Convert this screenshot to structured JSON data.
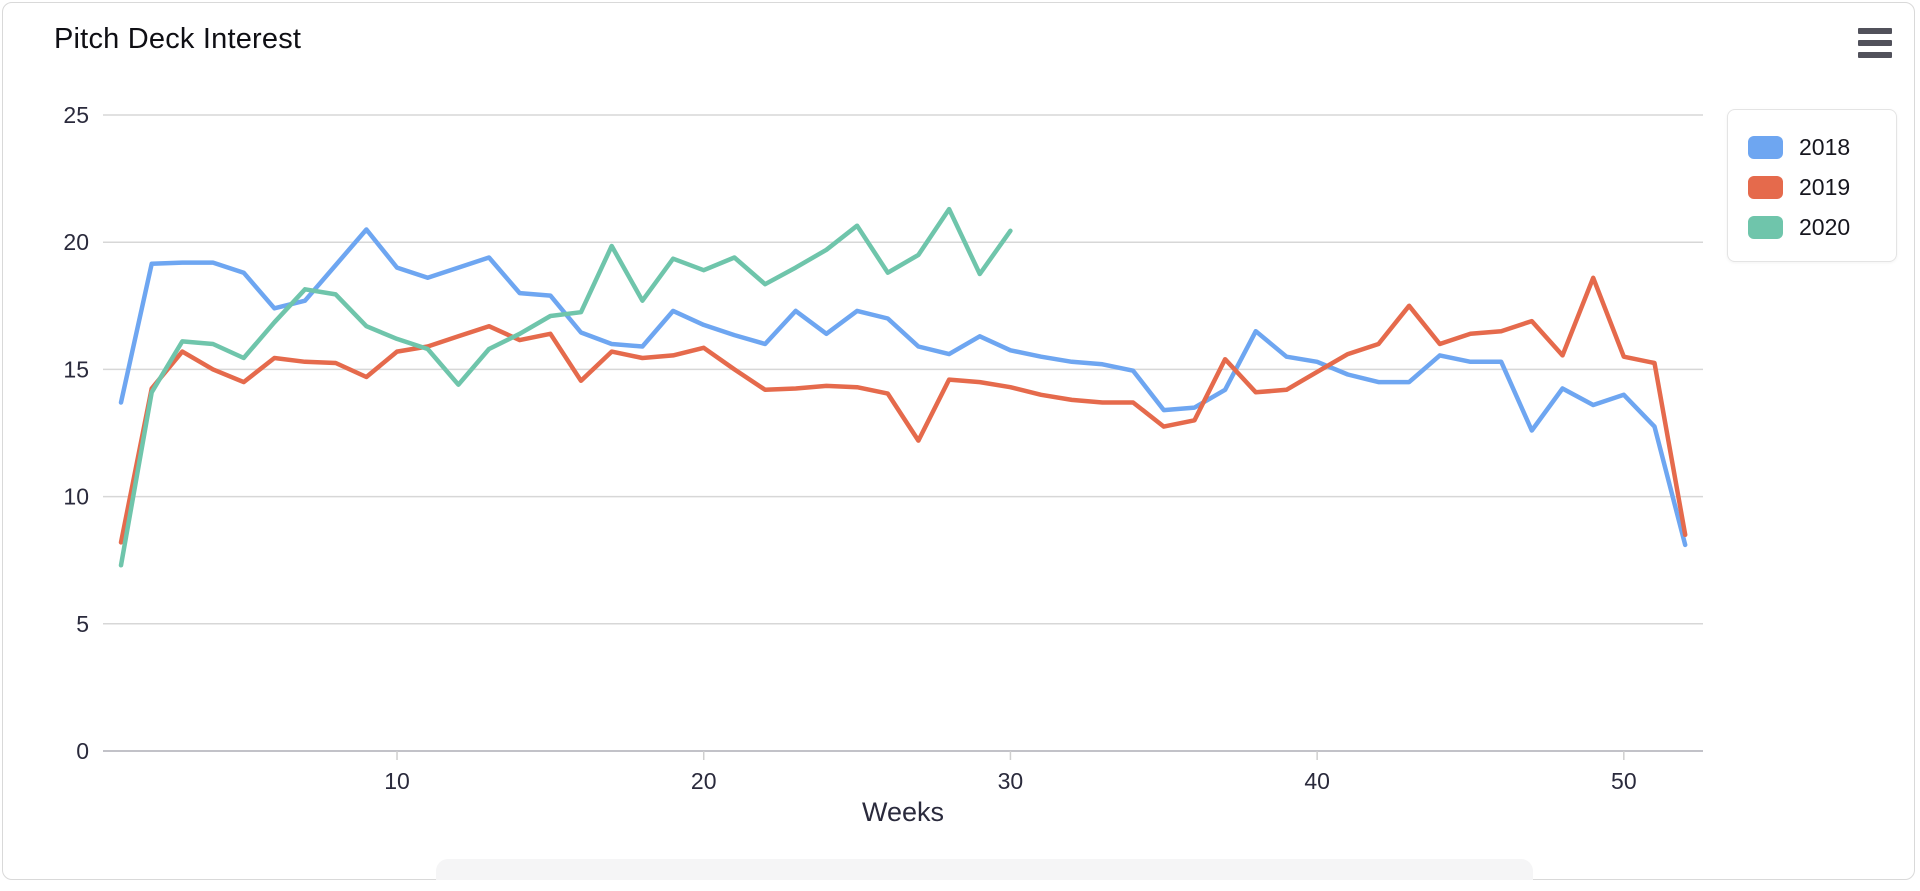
{
  "card": {
    "title": "Pitch Deck Interest"
  },
  "menu": {
    "icon": "hamburger-icon"
  },
  "legend": {
    "position": "top-right",
    "items": [
      {
        "label": "2018",
        "color": "#6EA6F1"
      },
      {
        "label": "2019",
        "color": "#E56A4C"
      },
      {
        "label": "2020",
        "color": "#6FC5AB"
      }
    ]
  },
  "chart_data": {
    "type": "line",
    "title": "Pitch Deck Interest",
    "xlabel": "Weeks",
    "ylabel": "",
    "xlim": [
      1,
      52
    ],
    "ylim": [
      0,
      25
    ],
    "x_ticks": [
      10,
      20,
      30,
      40,
      50
    ],
    "y_ticks": [
      0,
      5,
      10,
      15,
      20,
      25
    ],
    "grid": "horizontal-only",
    "legend_position": "top-right",
    "line_width": 4.5,
    "series": [
      {
        "name": "2018",
        "color": "#6EA6F1",
        "start_week": 1,
        "values": [
          13.7,
          19.15,
          19.2,
          19.2,
          18.8,
          17.4,
          17.7,
          19.1,
          20.5,
          19.0,
          18.6,
          19.0,
          19.4,
          18.0,
          17.9,
          16.45,
          16.0,
          15.9,
          17.3,
          16.75,
          16.35,
          16.0,
          17.3,
          16.4,
          17.3,
          17.0,
          15.9,
          15.6,
          16.3,
          15.75,
          15.5,
          15.3,
          15.2,
          14.95,
          13.4,
          13.5,
          14.2,
          16.5,
          15.5,
          15.3,
          14.8,
          14.5,
          14.5,
          15.55,
          15.3,
          15.3,
          12.6,
          14.25,
          13.6,
          14.0,
          12.75,
          8.1
        ]
      },
      {
        "name": "2019",
        "color": "#E56A4C",
        "start_week": 1,
        "values": [
          8.2,
          14.25,
          15.7,
          15.0,
          14.5,
          15.45,
          15.3,
          15.25,
          14.7,
          15.7,
          15.9,
          16.3,
          16.7,
          16.15,
          16.4,
          14.55,
          15.7,
          15.45,
          15.55,
          15.85,
          15.0,
          14.2,
          14.25,
          14.35,
          14.3,
          14.05,
          12.2,
          14.6,
          14.5,
          14.3,
          14.0,
          13.8,
          13.7,
          13.7,
          12.75,
          13.0,
          15.4,
          14.1,
          14.2,
          14.9,
          15.6,
          16.0,
          17.5,
          16.0,
          16.4,
          16.5,
          16.9,
          15.55,
          18.6,
          15.5,
          15.25,
          8.5
        ]
      },
      {
        "name": "2020",
        "color": "#6FC5AB",
        "start_week": 1,
        "values": [
          7.3,
          14.1,
          16.1,
          16.0,
          15.45,
          16.85,
          18.15,
          17.95,
          16.7,
          16.2,
          15.8,
          14.4,
          15.8,
          16.4,
          17.1,
          17.25,
          19.85,
          17.7,
          19.35,
          18.9,
          19.4,
          18.35,
          19.0,
          19.7,
          20.65,
          18.8,
          19.5,
          21.3,
          18.75,
          20.45
        ]
      }
    ]
  }
}
